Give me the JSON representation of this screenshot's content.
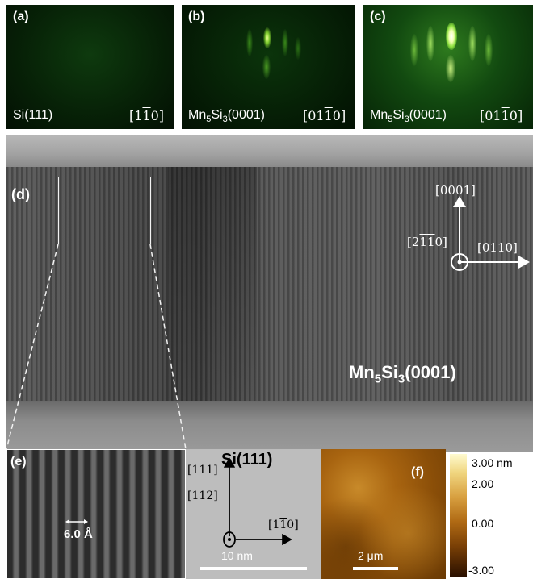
{
  "panels": {
    "a": {
      "label": "(a)",
      "material": "Si(111)",
      "direction": "[1̅1̅0]"
    },
    "b": {
      "label": "(b)",
      "material": "Mn₅Si₃(0001)",
      "direction": "[011̅0]"
    },
    "c": {
      "label": "(c)",
      "material": "Mn₅Si₃(0001)",
      "direction": "[011̅0]"
    },
    "d": {
      "label": "(d)",
      "film": "Mn₅Si₃(0001)",
      "axes": {
        "up": "[0001]",
        "right": "[011̅0]",
        "out": "[21̅1̅0]"
      }
    },
    "e": {
      "label": "(e)",
      "spacing": "6.0 Å"
    },
    "substrate": {
      "label": "Si(111)",
      "axes": {
        "up": "[111]",
        "right": "[11̅0]",
        "out": "[1̅1̅2]"
      },
      "scalebar": "10 nm"
    },
    "f": {
      "label": "(f)",
      "scalebar": "2 μm",
      "colorbar": {
        "ticks": [
          "3.00 nm",
          "2.00",
          "0.00",
          "-3.00"
        ],
        "min": -3.0,
        "max": 3.0,
        "unit": "nm"
      }
    }
  },
  "colors": {
    "rheed": "#0a3a0a",
    "spot": "#f4ffd0",
    "afm_low": "#2a1000",
    "afm_high": "#f8eab0"
  }
}
